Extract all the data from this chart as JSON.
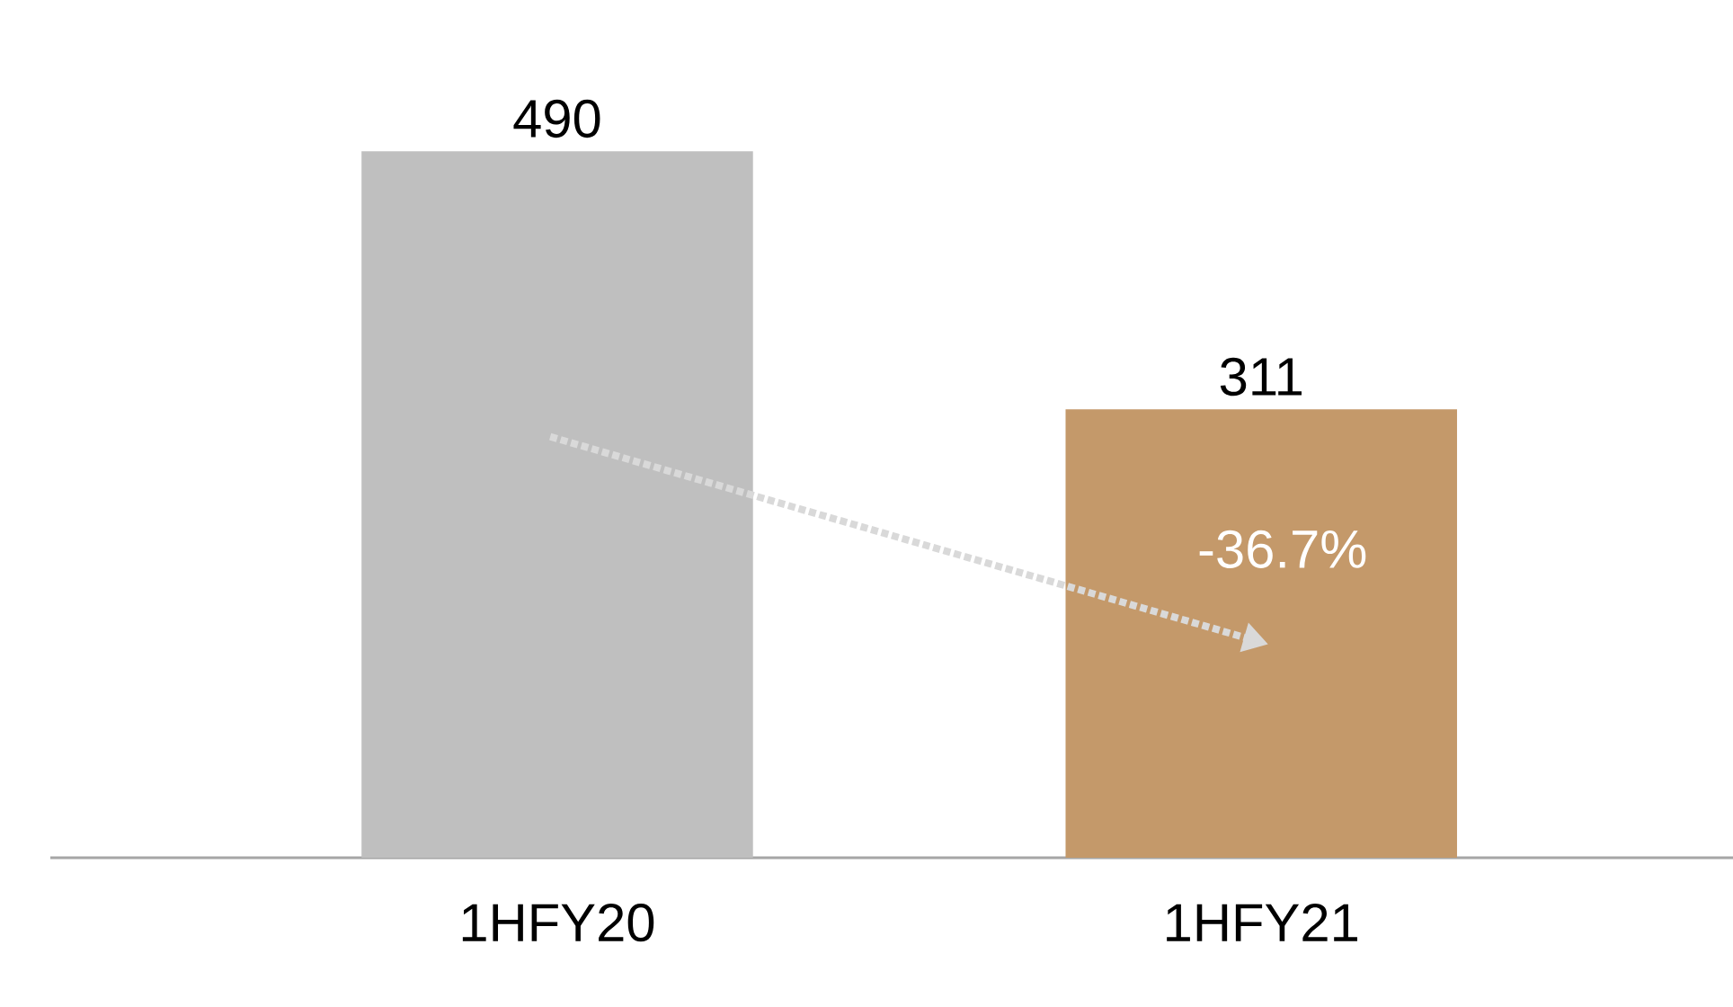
{
  "chart_data": {
    "type": "bar",
    "categories": [
      "1HFY20",
      "1HFY21"
    ],
    "values": [
      490,
      311
    ],
    "colors": [
      "#bfbfbf",
      "#c4996a"
    ],
    "data_labels": true,
    "annotations": [
      "-36.7%"
    ]
  }
}
